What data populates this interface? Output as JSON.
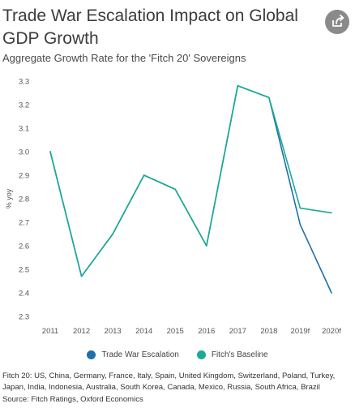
{
  "header": {
    "title": "Trade War Escalation Impact on Global GDP Growth",
    "subtitle": "Aggregate Growth Rate for the 'Fitch 20' Sovereigns",
    "share_icon": "share-icon"
  },
  "chart_data": {
    "type": "line",
    "categories": [
      "2011",
      "2012",
      "2013",
      "2014",
      "2015",
      "2016",
      "2017",
      "2018",
      "2019f",
      "2020f"
    ],
    "ylabel": "% yoy",
    "ylim": [
      2.3,
      3.3
    ],
    "yticks": [
      "2.3",
      "2.4",
      "2.5",
      "2.6",
      "2.7",
      "2.8",
      "2.9",
      "3.0",
      "3.1",
      "3.2",
      "3.3"
    ],
    "grid": false,
    "legend_position": "bottom",
    "series": [
      {
        "name": "Trade War Escalation",
        "color": "#1f6fa8",
        "values": [
          3.0,
          2.47,
          2.65,
          2.9,
          2.84,
          2.6,
          3.28,
          3.23,
          2.69,
          2.4
        ]
      },
      {
        "name": "Fitch's Baseline",
        "color": "#1aab96",
        "values": [
          3.0,
          2.47,
          2.65,
          2.9,
          2.84,
          2.6,
          3.28,
          3.23,
          2.76,
          2.74
        ]
      }
    ]
  },
  "footer": {
    "footnote": "Fitch 20: US, China, Germany, France, Italy, Spain, United Kingdom, Switzerland, Poland, Turkey, Japan, India, Indonesia, Australia, South Korea, Canada, Mexico, Russia, South Africa, Brazil",
    "source": "Source: Fitch Ratings, Oxford Economics"
  }
}
